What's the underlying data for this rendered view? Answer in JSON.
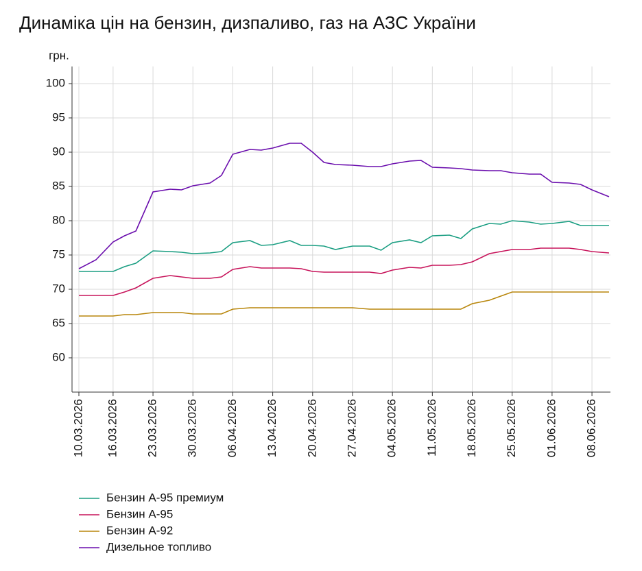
{
  "chart_data": {
    "type": "line",
    "title": "Динаміка цін на бензин, дизпаливо, газ на АЗС України",
    "y_label": "грн.",
    "x": [
      "10.03.2026",
      "13.03.2026",
      "16.03.2026",
      "18.03.2026",
      "20.03.2026",
      "23.03.2026",
      "26.03.2026",
      "28.03.2026",
      "30.03.2026",
      "02.04.2026",
      "04.04.2026",
      "06.04.2026",
      "09.04.2026",
      "11.04.2026",
      "13.04.2026",
      "16.04.2026",
      "18.04.2026",
      "20.04.2026",
      "22.04.2026",
      "24.04.2026",
      "27.04.2026",
      "30.04.2026",
      "02.05.2026",
      "04.05.2026",
      "07.05.2026",
      "09.05.2026",
      "11.05.2026",
      "14.05.2026",
      "16.05.2026",
      "18.05.2026",
      "21.05.2026",
      "23.05.2026",
      "25.05.2026",
      "28.05.2026",
      "30.05.2026",
      "01.06.2026",
      "04.06.2026",
      "06.06.2026",
      "08.06.2026",
      "11.06.2026"
    ],
    "series": [
      {
        "name": "Бензин А-95 премиум",
        "color": "#1a9e82",
        "values": [
          72.6,
          72.6,
          72.6,
          73.3,
          73.8,
          75.6,
          75.5,
          75.4,
          75.2,
          75.3,
          75.5,
          76.8,
          77.1,
          76.4,
          76.5,
          77.1,
          76.4,
          76.4,
          76.3,
          75.8,
          76.3,
          76.3,
          75.7,
          76.8,
          77.2,
          76.8,
          77.8,
          77.9,
          77.4,
          78.8,
          79.6,
          79.5,
          80.0,
          79.8,
          79.5,
          79.6,
          79.9,
          79.3,
          79.3,
          79.3
        ]
      },
      {
        "name": "Бензин А-95",
        "color": "#c7135a",
        "values": [
          69.1,
          69.1,
          69.1,
          69.6,
          70.2,
          71.6,
          72.0,
          71.8,
          71.6,
          71.6,
          71.8,
          72.9,
          73.3,
          73.1,
          73.1,
          73.1,
          73.0,
          72.6,
          72.5,
          72.5,
          72.5,
          72.5,
          72.3,
          72.8,
          73.2,
          73.1,
          73.5,
          73.5,
          73.6,
          74.0,
          75.2,
          75.5,
          75.8,
          75.8,
          76.0,
          76.0,
          76.0,
          75.8,
          75.5,
          75.3
        ]
      },
      {
        "name": "Бензин А-92",
        "color": "#b8860b",
        "values": [
          66.1,
          66.1,
          66.1,
          66.3,
          66.3,
          66.6,
          66.6,
          66.6,
          66.4,
          66.4,
          66.4,
          67.1,
          67.3,
          67.3,
          67.3,
          67.3,
          67.3,
          67.3,
          67.3,
          67.3,
          67.3,
          67.1,
          67.1,
          67.1,
          67.1,
          67.1,
          67.1,
          67.1,
          67.1,
          67.9,
          68.4,
          69.0,
          69.6,
          69.6,
          69.6,
          69.6,
          69.6,
          69.6,
          69.6,
          69.6
        ]
      },
      {
        "name": "Дизельное топливо",
        "color": "#6a0dad",
        "values": [
          73.0,
          74.3,
          76.9,
          77.8,
          78.5,
          84.2,
          84.6,
          84.5,
          85.1,
          85.5,
          86.6,
          89.7,
          90.4,
          90.3,
          90.6,
          91.3,
          91.3,
          90.0,
          88.5,
          88.2,
          88.1,
          87.9,
          87.9,
          88.3,
          88.7,
          88.8,
          87.8,
          87.7,
          87.6,
          87.4,
          87.3,
          87.3,
          87.0,
          86.8,
          86.8,
          85.6,
          85.5,
          85.3,
          84.5,
          83.5
        ]
      }
    ],
    "xticks": [
      "10.03.2026",
      "16.03.2026",
      "23.03.2026",
      "30.03.2026",
      "06.04.2026",
      "13.04.2026",
      "20.04.2026",
      "27.04.2026",
      "04.05.2026",
      "11.05.2026",
      "18.05.2026",
      "25.05.2026",
      "01.06.2026",
      "08.06.2026"
    ],
    "ylim": [
      55,
      102.5
    ],
    "yticks": [
      60,
      65,
      70,
      75,
      80,
      85,
      90,
      95,
      100
    ],
    "grid": true
  }
}
